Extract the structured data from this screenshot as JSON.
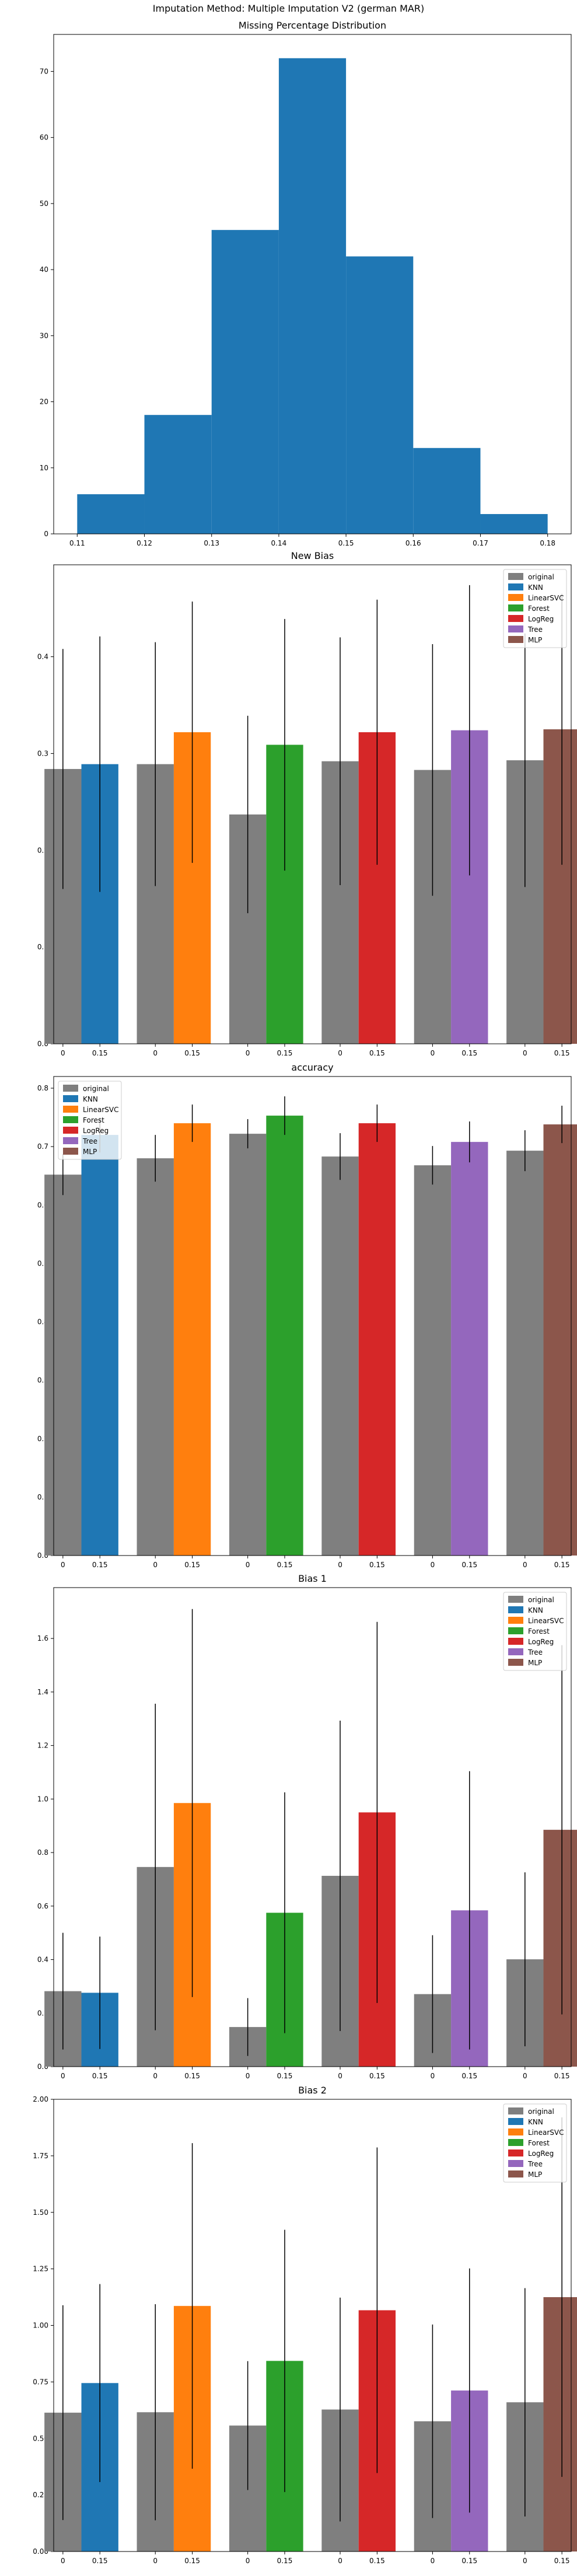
{
  "suptitle": "Imputation Method: Multiple Imputation V2 (german MAR)",
  "colors": {
    "original": "#7f7f7f",
    "KNN": "#1f77b4",
    "LinearSVC": "#ff7f0e",
    "Forest": "#2ca02c",
    "LogReg": "#d62728",
    "Tree": "#9467bd",
    "MLP": "#8c564b",
    "hist": "#1f77b4"
  },
  "chart_data": [
    {
      "type": "bar",
      "title": "Missing Percentage Distribution",
      "xlabel": "",
      "ylabel": "",
      "bin_edges": [
        0.11,
        0.12,
        0.13,
        0.14,
        0.15,
        0.16,
        0.17,
        0.18
      ],
      "values": [
        6,
        18,
        46,
        72,
        42,
        13,
        3
      ],
      "xlim": [
        0.1065,
        0.1835
      ],
      "ylim": [
        0,
        75.6
      ],
      "xticks": [
        0.11,
        0.12,
        0.13,
        0.14,
        0.15,
        0.16,
        0.17,
        0.18
      ],
      "xtick_labels": [
        "0.11",
        "0.12",
        "0.13",
        "0.14",
        "0.15",
        "0.16",
        "0.17",
        "0.18"
      ],
      "yticks": [
        0,
        10,
        20,
        30,
        40,
        50,
        60,
        70
      ],
      "ytick_labels": [
        "0",
        "10",
        "20",
        "30",
        "40",
        "50",
        "60",
        "70"
      ]
    },
    {
      "type": "bar",
      "title": "New Bias",
      "xlabel": "",
      "ylabel": "",
      "groups": [
        "KNN",
        "LinearSVC",
        "Forest",
        "LogReg",
        "Tree",
        "MLP"
      ],
      "bar_labels": [
        "0",
        "0.15"
      ],
      "original": [
        0.284,
        0.289,
        0.237,
        0.292,
        0.283,
        0.293
      ],
      "original_err": [
        0.124,
        0.126,
        0.102,
        0.128,
        0.13,
        0.131
      ],
      "imputed": [
        0.289,
        0.322,
        0.309,
        0.322,
        0.324,
        0.325
      ],
      "imputed_err": [
        0.132,
        0.135,
        0.13,
        0.137,
        0.15,
        0.14
      ],
      "ylim": [
        0,
        0.495
      ],
      "yticks": [
        0,
        0.1,
        0.2,
        0.3,
        0.4
      ],
      "ytick_labels": [
        "0.0",
        "0.1",
        "0.2",
        "0.3",
        "0.4"
      ],
      "legend": [
        "original",
        "KNN",
        "LinearSVC",
        "Forest",
        "LogReg",
        "Tree",
        "MLP"
      ],
      "legend_position": "top-right"
    },
    {
      "type": "bar",
      "title": "accuracy",
      "xlabel": "",
      "ylabel": "",
      "groups": [
        "KNN",
        "LinearSVC",
        "Forest",
        "LogReg",
        "Tree",
        "MLP"
      ],
      "bar_labels": [
        "0",
        "0.15"
      ],
      "original": [
        0.652,
        0.68,
        0.722,
        0.683,
        0.668,
        0.693
      ],
      "original_err": [
        0.035,
        0.04,
        0.025,
        0.04,
        0.033,
        0.035
      ],
      "imputed": [
        0.72,
        0.74,
        0.753,
        0.74,
        0.708,
        0.738
      ],
      "imputed_err": [
        0.03,
        0.032,
        0.033,
        0.032,
        0.035,
        0.032
      ],
      "ylim": [
        0,
        0.82
      ],
      "yticks": [
        0,
        0.1,
        0.2,
        0.3,
        0.4,
        0.5,
        0.6,
        0.7,
        0.8
      ],
      "ytick_labels": [
        "0.0",
        "0.1",
        "0.2",
        "0.3",
        "0.4",
        "0.5",
        "0.6",
        "0.7",
        "0.8"
      ],
      "legend": [
        "original",
        "KNN",
        "LinearSVC",
        "Forest",
        "LogReg",
        "Tree",
        "MLP"
      ],
      "legend_position": "top-left"
    },
    {
      "type": "bar",
      "title": "Bias 1",
      "xlabel": "",
      "ylabel": "",
      "groups": [
        "KNN",
        "LinearSVC",
        "Forest",
        "LogReg",
        "Tree",
        "MLP"
      ],
      "bar_labels": [
        "0",
        "0.15"
      ],
      "original": [
        0.282,
        0.746,
        0.148,
        0.713,
        0.271,
        0.401
      ],
      "original_err": [
        0.218,
        0.61,
        0.108,
        0.58,
        0.22,
        0.325
      ],
      "imputed": [
        0.276,
        0.985,
        0.575,
        0.95,
        0.584,
        0.885
      ],
      "imputed_err": [
        0.21,
        0.725,
        0.45,
        0.712,
        0.52,
        0.69
      ],
      "ylim": [
        0,
        1.79
      ],
      "yticks": [
        0,
        0.2,
        0.4,
        0.6,
        0.8,
        1.0,
        1.2,
        1.4,
        1.6
      ],
      "ytick_labels": [
        "0.0",
        "0.2",
        "0.4",
        "0.6",
        "0.8",
        "1.0",
        "1.2",
        "1.4",
        "1.6"
      ],
      "legend": [
        "original",
        "KNN",
        "LinearSVC",
        "Forest",
        "LogReg",
        "Tree",
        "MLP"
      ],
      "legend_position": "top-right"
    },
    {
      "type": "bar",
      "title": "Bias 2",
      "xlabel": "",
      "ylabel": "",
      "groups": [
        "KNN",
        "LinearSVC",
        "Forest",
        "LogReg",
        "Tree",
        "MLP"
      ],
      "bar_labels": [
        "0",
        "0.15"
      ],
      "original": [
        0.614,
        0.616,
        0.557,
        0.628,
        0.576,
        0.66
      ],
      "original_err": [
        0.475,
        0.478,
        0.285,
        0.495,
        0.428,
        0.505
      ],
      "imputed": [
        0.745,
        1.086,
        0.843,
        1.067,
        0.712,
        1.125
      ],
      "imputed_err": [
        0.438,
        0.72,
        0.58,
        0.72,
        0.54,
        0.795
      ],
      "ylim": [
        0,
        2.0
      ],
      "yticks": [
        0,
        0.25,
        0.5,
        0.75,
        1.0,
        1.25,
        1.5,
        1.75,
        2.0
      ],
      "ytick_labels": [
        "0.00",
        "0.25",
        "0.50",
        "0.75",
        "1.00",
        "1.25",
        "1.50",
        "1.75",
        "2.00"
      ],
      "legend": [
        "original",
        "KNN",
        "LinearSVC",
        "Forest",
        "LogReg",
        "Tree",
        "MLP"
      ],
      "legend_position": "top-right"
    }
  ]
}
